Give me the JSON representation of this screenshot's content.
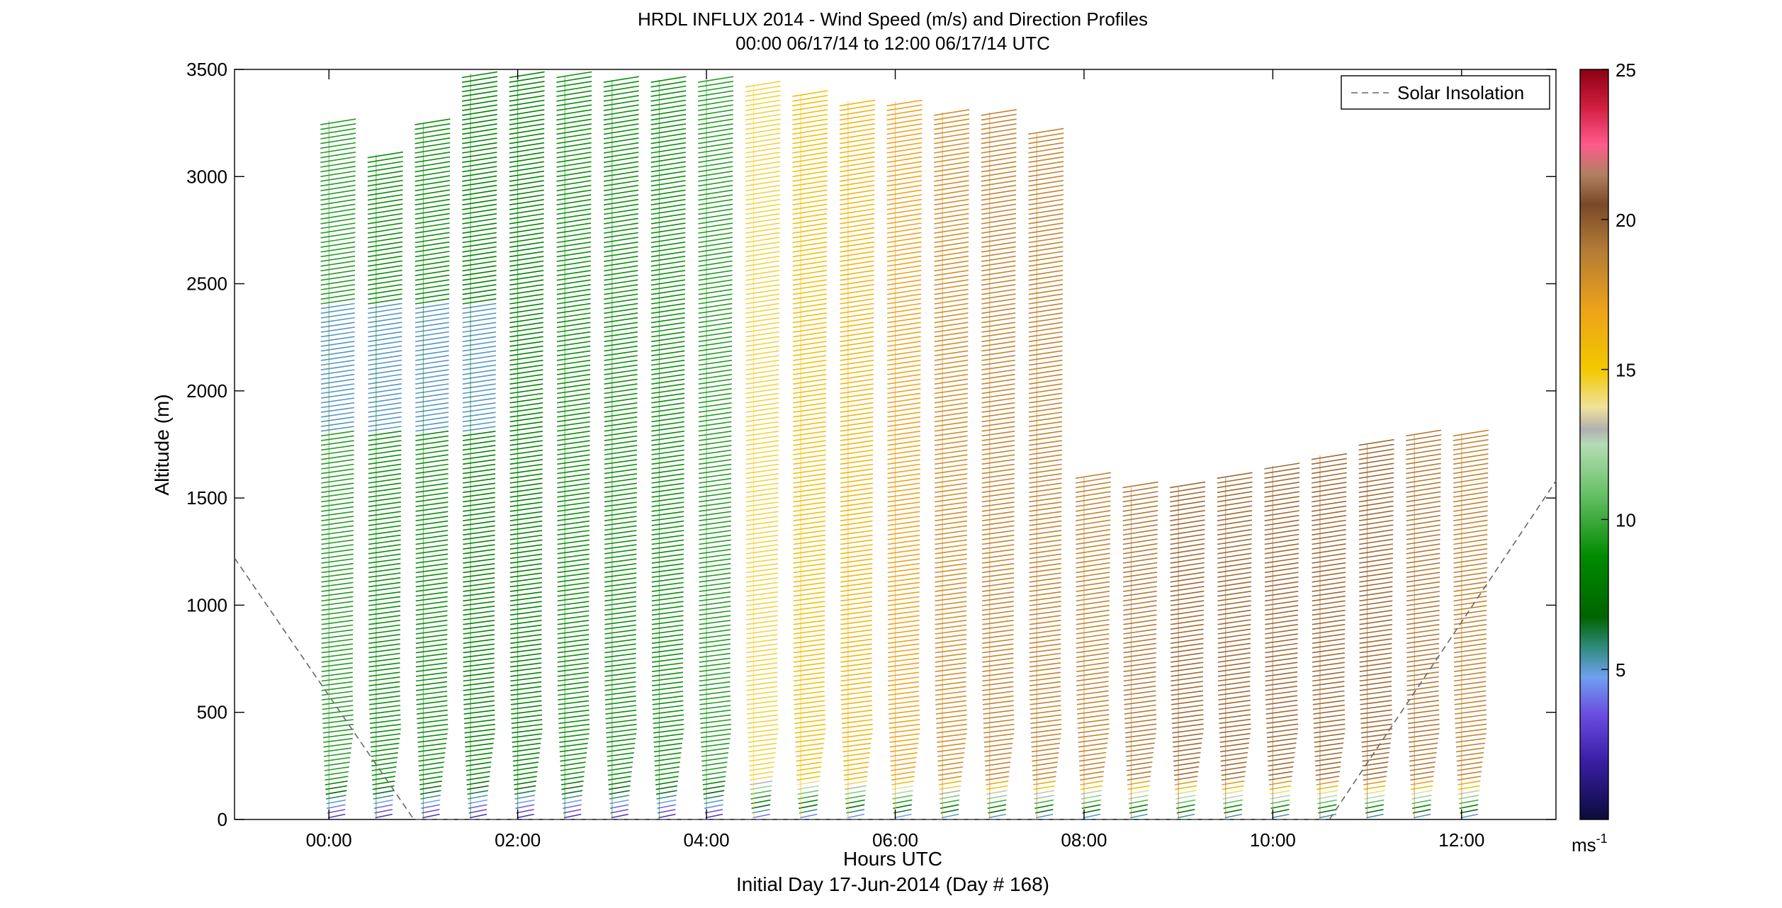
{
  "chart_data": {
    "type": "wind-barb-profile",
    "title": "HRDL INFLUX 2014 - Wind Speed (m/s) and Direction Profiles",
    "subtitle": "00:00 06/17/14 to 12:00 06/17/14  UTC",
    "xlabel": "Hours UTC",
    "xlabel2": "Initial Day 17-Jun-2014 (Day # 168)",
    "ylabel": "Altitude (m)",
    "xlim": [
      -1.0,
      13.0
    ],
    "ylim": [
      0,
      3500
    ],
    "x_ticks": [
      {
        "value": 0,
        "label": "00:00"
      },
      {
        "value": 2,
        "label": "02:00"
      },
      {
        "value": 4,
        "label": "04:00"
      },
      {
        "value": 6,
        "label": "06:00"
      },
      {
        "value": 8,
        "label": "08:00"
      },
      {
        "value": 10,
        "label": "10:00"
      },
      {
        "value": 12,
        "label": "12:00"
      }
    ],
    "y_ticks": [
      {
        "value": 0,
        "label": "0"
      },
      {
        "value": 500,
        "label": "500"
      },
      {
        "value": 1000,
        "label": "1000"
      },
      {
        "value": 1500,
        "label": "1500"
      },
      {
        "value": 2000,
        "label": "2000"
      },
      {
        "value": 2500,
        "label": "2500"
      },
      {
        "value": 3000,
        "label": "3000"
      },
      {
        "value": 3500,
        "label": "3500"
      }
    ],
    "legend": {
      "entries": [
        "Solar Insolation"
      ],
      "placement": "top-right"
    },
    "colorbar": {
      "range": [
        0,
        25
      ],
      "unit": "ms",
      "unit_exp": "-1",
      "ticks": [
        {
          "value": 5,
          "label": "5"
        },
        {
          "value": 10,
          "label": "10"
        },
        {
          "value": 15,
          "label": "15"
        },
        {
          "value": 20,
          "label": "20"
        },
        {
          "value": 25,
          "label": "25"
        }
      ]
    },
    "profile_times_hours": [
      0.0,
      0.5,
      1.0,
      1.5,
      2.0,
      2.5,
      3.0,
      3.5,
      4.0,
      4.5,
      5.0,
      5.5,
      6.0,
      6.5,
      7.0,
      7.5,
      8.0,
      8.5,
      9.0,
      9.5,
      10.0,
      10.5,
      11.0,
      11.5,
      12.0
    ],
    "profile_top_altitude_m": [
      3260,
      3100,
      3250,
      3480,
      3480,
      3470,
      3450,
      3450,
      3450,
      3420,
      3380,
      3350,
      3350,
      3300,
      3300,
      3200,
      1600,
      1550,
      1550,
      1600,
      1650,
      1700,
      1750,
      1800,
      1800
    ],
    "representative_speed_ms": [
      9.5,
      9.0,
      9.0,
      8.5,
      8.5,
      9.0,
      9.0,
      9.0,
      9.5,
      14.5,
      15.5,
      16.0,
      17.0,
      18.0,
      18.5,
      18.5,
      18.5,
      19.0,
      19.5,
      19.5,
      19.5,
      19.5,
      19.5,
      19.0,
      18.5
    ],
    "solar_insolation_curve": [
      {
        "x": -1.0,
        "y": 1220
      },
      {
        "x": 0.9,
        "y": 0
      },
      {
        "x": 10.6,
        "y": 0
      },
      {
        "x": 13.0,
        "y": 1580
      }
    ]
  }
}
